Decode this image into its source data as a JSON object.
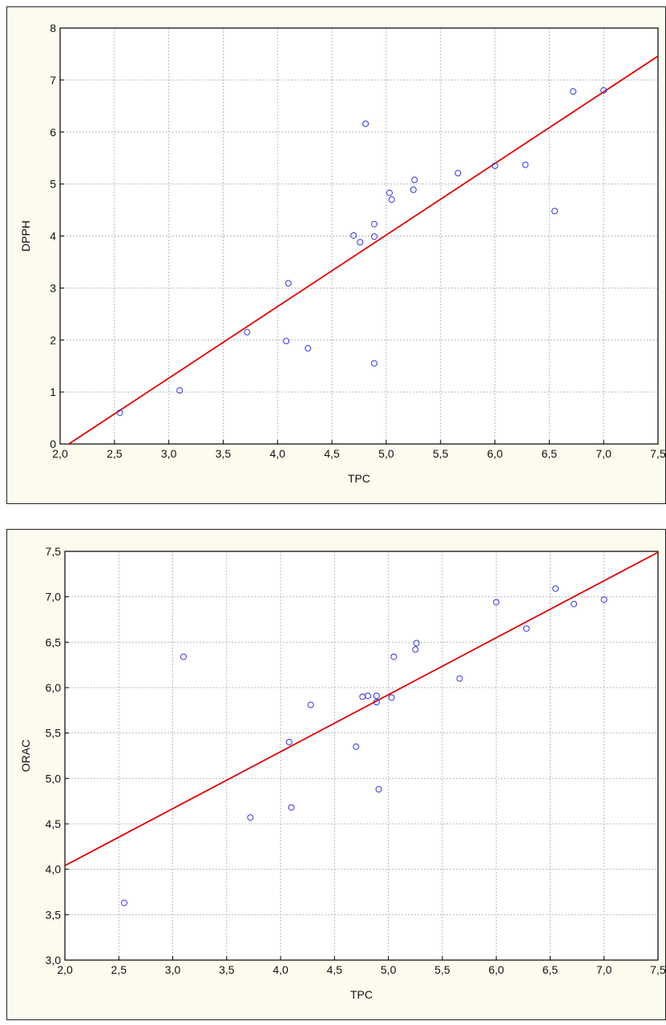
{
  "chart_data": [
    {
      "type": "scatter",
      "title": "",
      "xlabel": "TPC",
      "ylabel": "DPPH",
      "xlim": [
        2.0,
        7.5
      ],
      "ylim": [
        0,
        8
      ],
      "xticks": [
        2.0,
        2.5,
        3.0,
        3.5,
        4.0,
        4.5,
        5.0,
        5.5,
        6.0,
        6.5,
        7.0,
        7.5
      ],
      "xtick_labels": [
        "2,0",
        "2,5",
        "3,0",
        "3,5",
        "4,0",
        "4,5",
        "5,0",
        "5,5",
        "6,0",
        "6,5",
        "7,0",
        "7,5"
      ],
      "yticks": [
        0,
        1,
        2,
        3,
        4,
        5,
        6,
        7,
        8
      ],
      "ytick_labels": [
        "0",
        "1",
        "2",
        "3",
        "4",
        "5",
        "6",
        "7",
        "8"
      ],
      "grid": true,
      "point_color": "#3333dd",
      "line_color": "#dd0000",
      "points": [
        [
          2.55,
          0.6
        ],
        [
          3.1,
          1.03
        ],
        [
          3.72,
          2.15
        ],
        [
          4.08,
          1.98
        ],
        [
          4.1,
          3.09
        ],
        [
          4.28,
          1.84
        ],
        [
          4.7,
          4.01
        ],
        [
          4.76,
          3.88
        ],
        [
          4.81,
          6.16
        ],
        [
          4.89,
          4.23
        ],
        [
          4.89,
          3.99
        ],
        [
          4.89,
          1.55
        ],
        [
          5.03,
          4.83
        ],
        [
          5.05,
          4.7
        ],
        [
          5.25,
          4.89
        ],
        [
          5.26,
          5.08
        ],
        [
          5.66,
          5.21
        ],
        [
          6.0,
          5.35
        ],
        [
          6.28,
          5.37
        ],
        [
          6.55,
          4.48
        ],
        [
          6.72,
          6.78
        ],
        [
          7.0,
          6.8
        ]
      ],
      "fit_line": {
        "start": [
          2.08,
          0.0
        ],
        "end": [
          7.5,
          7.46
        ]
      }
    },
    {
      "type": "scatter",
      "title": "",
      "xlabel": "TPC",
      "ylabel": "ORAC",
      "xlim": [
        2.0,
        7.5
      ],
      "ylim": [
        3.0,
        7.5
      ],
      "xticks": [
        2.0,
        2.5,
        3.0,
        3.5,
        4.0,
        4.5,
        5.0,
        5.5,
        6.0,
        6.5,
        7.0,
        7.5
      ],
      "xtick_labels": [
        "2,0",
        "2,5",
        "3,0",
        "3,5",
        "4,0",
        "4,5",
        "5,0",
        "5,5",
        "6,0",
        "6,5",
        "7,0",
        "7,5"
      ],
      "yticks": [
        3.0,
        3.5,
        4.0,
        4.5,
        5.0,
        5.5,
        6.0,
        6.5,
        7.0,
        7.5
      ],
      "ytick_labels": [
        "3,0",
        "3,5",
        "4,0",
        "4,5",
        "5,0",
        "5,5",
        "6,0",
        "6,5",
        "7,0",
        "7,5"
      ],
      "grid": true,
      "point_color": "#3333dd",
      "line_color": "#dd0000",
      "points": [
        [
          2.55,
          3.63
        ],
        [
          3.1,
          6.34
        ],
        [
          3.72,
          4.57
        ],
        [
          4.08,
          5.4
        ],
        [
          4.1,
          4.68
        ],
        [
          4.28,
          5.81
        ],
        [
          4.7,
          5.35
        ],
        [
          4.76,
          5.9
        ],
        [
          4.81,
          5.91
        ],
        [
          4.89,
          5.91
        ],
        [
          4.89,
          5.84
        ],
        [
          4.91,
          4.88
        ],
        [
          5.03,
          5.89
        ],
        [
          5.05,
          6.34
        ],
        [
          5.25,
          6.42
        ],
        [
          5.26,
          6.49
        ],
        [
          5.66,
          6.1
        ],
        [
          6.0,
          6.94
        ],
        [
          6.28,
          6.65
        ],
        [
          6.55,
          7.09
        ],
        [
          6.72,
          6.92
        ],
        [
          7.0,
          6.97
        ]
      ],
      "fit_line": {
        "start": [
          2.0,
          4.04
        ],
        "end": [
          7.5,
          7.49
        ]
      }
    }
  ]
}
